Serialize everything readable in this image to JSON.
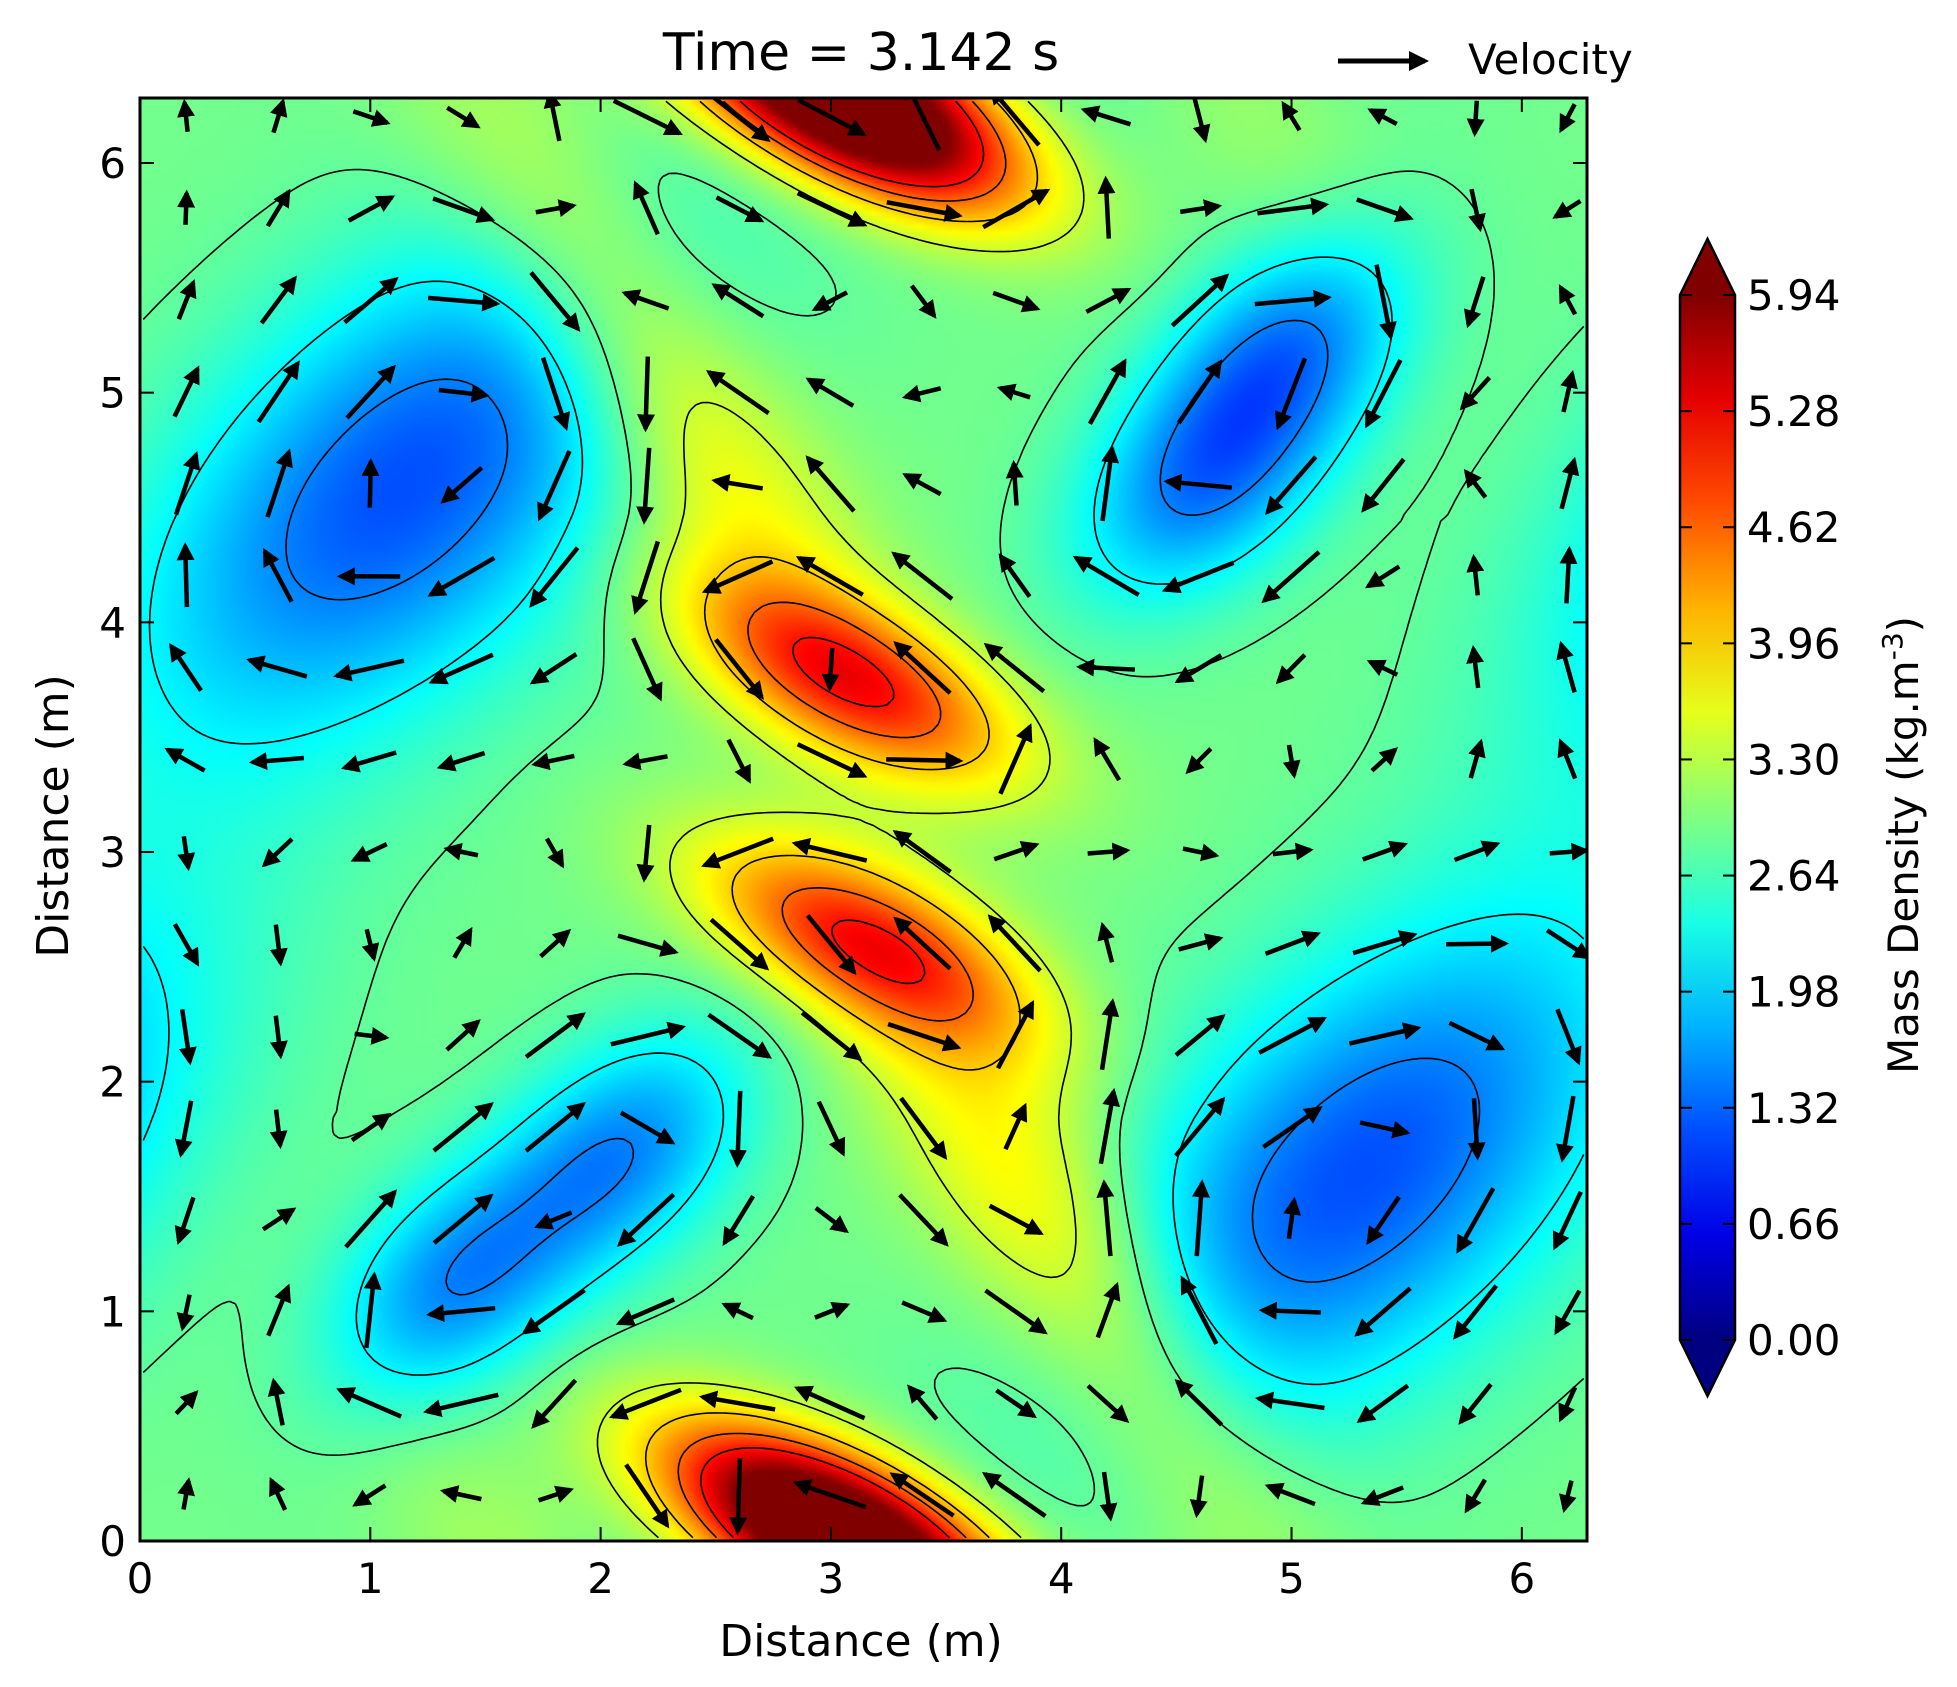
{
  "chart_data": {
    "type": "heatmap",
    "title": "Time = 3.142 s",
    "xlabel": "Distance (m)",
    "ylabel": "Distance (m)",
    "xlim": [
      0,
      6.283
    ],
    "ylim": [
      0,
      6.283
    ],
    "xticks": [
      "0",
      "1",
      "2",
      "3",
      "4",
      "5",
      "6"
    ],
    "yticks": [
      "0",
      "1",
      "2",
      "3",
      "4",
      "5",
      "6"
    ],
    "grid": false,
    "legend": {
      "position": "top-right",
      "label": "Velocity"
    },
    "colorbar": {
      "label": "Mass Density (kg.m",
      "label_exp": "-3",
      "label_tail": ")",
      "range": [
        0,
        5.94
      ],
      "ticks": [
        "0.00",
        "0.66",
        "1.32",
        "1.98",
        "2.64",
        "3.30",
        "3.96",
        "4.62",
        "5.28",
        "5.94"
      ],
      "colormap": "jet",
      "extend": "both",
      "min_color": "#000080",
      "max_color": "#800000"
    },
    "density_features": [
      {
        "kind": "low",
        "x": 1.15,
        "y": 4.6,
        "value": 1.2
      },
      {
        "kind": "low",
        "x": 5.3,
        "y": 1.6,
        "value": 1.2
      },
      {
        "kind": "low",
        "x": 1.35,
        "y": 1.1,
        "value": 1.6
      },
      {
        "kind": "low",
        "x": 2.1,
        "y": 1.7,
        "value": 1.6
      },
      {
        "kind": "low",
        "x": 4.6,
        "y": 4.6,
        "value": 1.6
      },
      {
        "kind": "low",
        "x": 5.0,
        "y": 5.2,
        "value": 1.6
      },
      {
        "kind": "high",
        "x": 3.1,
        "y": 3.75,
        "value": 4.9
      },
      {
        "kind": "high",
        "x": 3.15,
        "y": 2.6,
        "value": 4.9
      },
      {
        "kind": "high",
        "x": 3.1,
        "y": 6.2,
        "value": 5.4
      },
      {
        "kind": "high",
        "x": 3.0,
        "y": 0.1,
        "value": 5.4
      },
      {
        "kind": "ridge",
        "x": 2.3,
        "y": 5.0,
        "value": 3.9
      },
      {
        "kind": "ridge",
        "x": 4.0,
        "y": 1.3,
        "value": 3.9
      }
    ]
  }
}
